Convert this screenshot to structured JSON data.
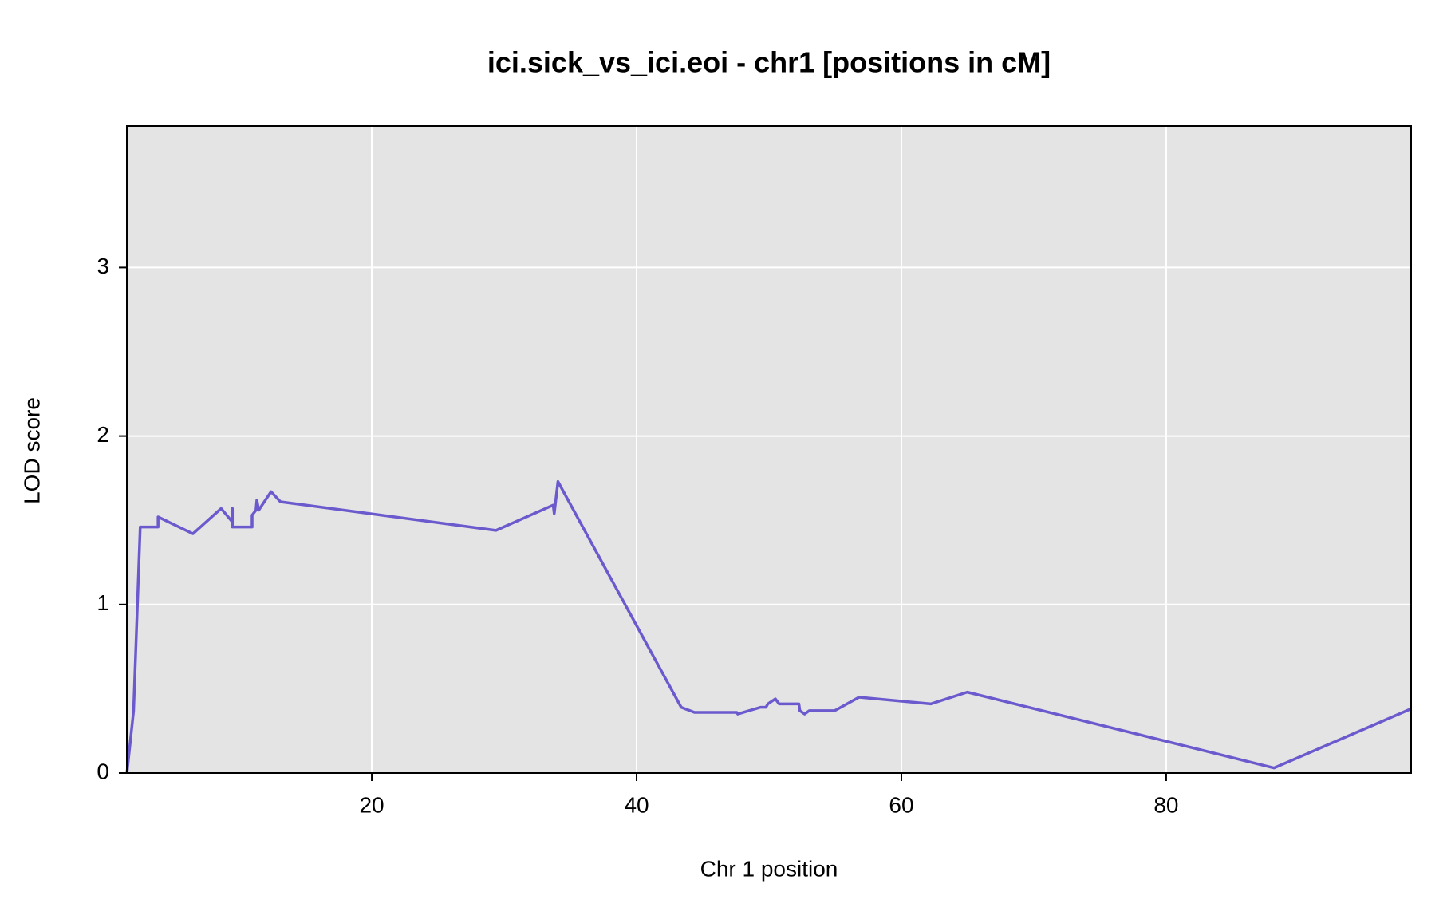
{
  "chart_data": {
    "type": "line",
    "title": "ici.sick_vs_ici.eoi - chr1 [positions in cM]",
    "x_label": "Chr 1 position",
    "y_label": "LOD score",
    "grid": true,
    "xlim": [
      1.5,
      98.5
    ],
    "ylim": [
      0,
      3.84
    ],
    "xticks": [
      20,
      40,
      60,
      80
    ],
    "yticks": [
      0,
      1,
      2,
      3
    ],
    "x": [
      1.51,
      2.01,
      2.51,
      3.86,
      3.86,
      6.49,
      8.62,
      9.47,
      9.47,
      9.47,
      10.96,
      10.96,
      11.25,
      11.32,
      11.46,
      12.39,
      13.1,
      29.38,
      33.7,
      33.78,
      34.06,
      43.37,
      44.37,
      47.57,
      47.64,
      49.35,
      49.77,
      49.91,
      50.48,
      50.77,
      52.26,
      52.33,
      52.69,
      53.04,
      54.96,
      56.81,
      62.21,
      64.98,
      88.15,
      98.46
    ],
    "series": [
      {
        "color": "#6a5acd",
        "values": [
          0,
          0.37,
          1.46,
          1.46,
          1.52,
          1.42,
          1.57,
          1.49,
          1.57,
          1.46,
          1.46,
          1.53,
          1.56,
          1.62,
          1.56,
          1.67,
          1.61,
          1.44,
          1.59,
          1.54,
          1.73,
          0.39,
          0.36,
          0.36,
          0.35,
          0.39,
          0.39,
          0.41,
          0.44,
          0.41,
          0.41,
          0.37,
          0.35,
          0.37,
          0.37,
          0.45,
          0.41,
          0.48,
          0.03,
          0.38
        ]
      }
    ]
  }
}
